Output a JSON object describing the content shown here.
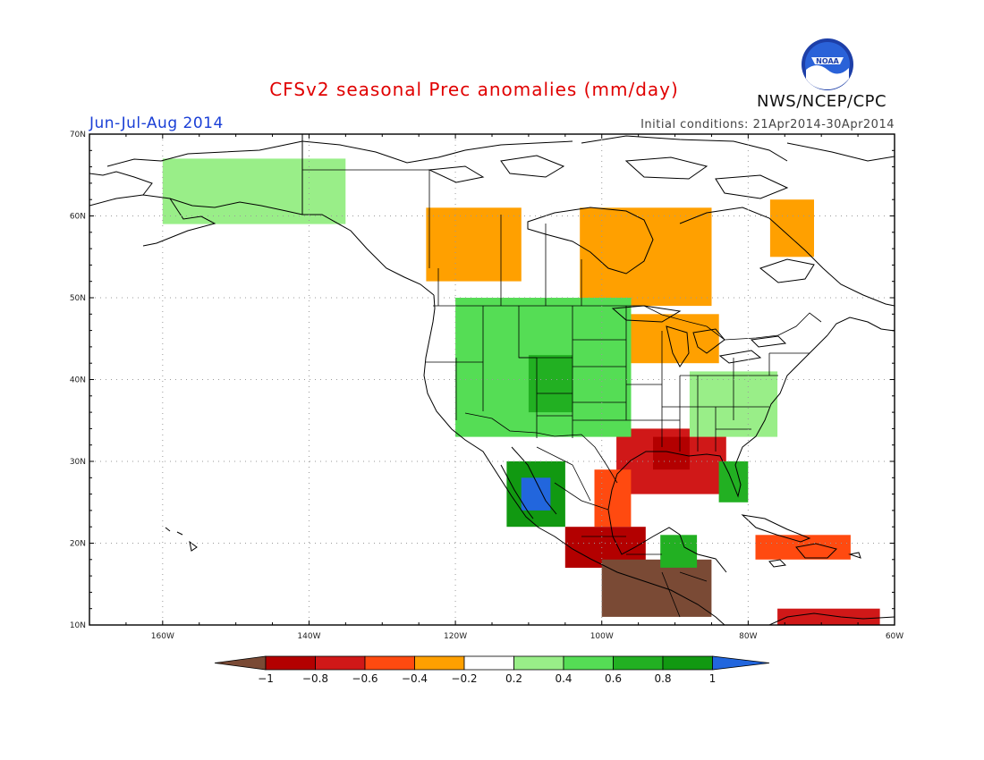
{
  "title": "CFSv2 seasonal Prec anomalies (mm/day)",
  "season": "Jun-Jul-Aug 2014",
  "initial_conditions": "Initial conditions: 21Apr2014-30Apr2014",
  "agency": "NWS/NCEP/CPC",
  "logo_text": "NOAA",
  "colors": {
    "title": "#e00000",
    "season": "#1a3fd6",
    "frame": "#000000",
    "coast": "#000000",
    "grid": "#9a9a9a"
  },
  "map_extent": {
    "lon_min": -170,
    "lon_max": -60,
    "lat_min": 10,
    "lat_max": 70
  },
  "lat_labels": [
    {
      "value": 70,
      "label": "70N"
    },
    {
      "value": 60,
      "label": "60N"
    },
    {
      "value": 50,
      "label": "50N"
    },
    {
      "value": 40,
      "label": "40N"
    },
    {
      "value": 30,
      "label": "30N"
    },
    {
      "value": 20,
      "label": "20N"
    },
    {
      "value": 10,
      "label": "10N"
    }
  ],
  "lon_labels": [
    {
      "value": -160,
      "label": "160W"
    },
    {
      "value": -140,
      "label": "140W"
    },
    {
      "value": -120,
      "label": "120W"
    },
    {
      "value": -100,
      "label": "100W"
    },
    {
      "value": -80,
      "label": "80W"
    },
    {
      "value": -60,
      "label": "60W"
    }
  ],
  "colorbar": {
    "labels": [
      "-1",
      "-0.8",
      "-0.6",
      "-0.4",
      "-0.2",
      "0.2",
      "0.4",
      "0.6",
      "0.8",
      "1"
    ],
    "colors": [
      "#7a4a35",
      "#b30000",
      "#d01818",
      "#ff4a10",
      "#ffa000",
      "#ffffff",
      "#99ee88",
      "#55dd55",
      "#22b022",
      "#119911",
      "#2266dd"
    ]
  },
  "anomaly_regions": [
    {
      "name": "Southeast US / Gulf Coast dry",
      "lon_min": -98,
      "lon_max": -83,
      "lat_min": 26,
      "lat_max": 34,
      "value": -0.7
    },
    {
      "name": "Louisiana core dry",
      "lon_min": -93,
      "lon_max": -88,
      "lat_min": 29,
      "lat_max": 33,
      "value": -0.9
    },
    {
      "name": "Texas coast dry",
      "lon_min": -101,
      "lon_max": -96,
      "lat_min": 22,
      "lat_max": 29,
      "value": -0.6
    },
    {
      "name": "Southern Mexico dry",
      "lon_min": -105,
      "lon_max": -94,
      "lat_min": 17,
      "lat_max": 22,
      "value": -0.9
    },
    {
      "name": "Central America very dry",
      "lon_min": -100,
      "lon_max": -85,
      "lat_min": 11,
      "lat_max": 18,
      "value": -1.1
    },
    {
      "name": "Caribbean dry",
      "lon_min": -79,
      "lon_max": -66,
      "lat_min": 18,
      "lat_max": 21,
      "value": -0.6
    },
    {
      "name": "Northern South America dry",
      "lon_min": -76,
      "lon_max": -62,
      "lat_min": 10,
      "lat_max": 12,
      "value": -0.7
    },
    {
      "name": "Central Canada dry",
      "lon_min": -103,
      "lon_max": -85,
      "lat_min": 49,
      "lat_max": 61,
      "value": -0.4
    },
    {
      "name": "Northwest Canada dry",
      "lon_min": -124,
      "lon_max": -111,
      "lat_min": 52,
      "lat_max": 61,
      "value": -0.4
    },
    {
      "name": "Quebec dry",
      "lon_min": -77,
      "lon_max": -71,
      "lat_min": 55,
      "lat_max": 62,
      "value": -0.3
    },
    {
      "name": "Great Lakes dry",
      "lon_min": -102,
      "lon_max": -84,
      "lat_min": 42,
      "lat_max": 48,
      "value": -0.3
    },
    {
      "name": "Rockies / Plains wet",
      "lon_min": -120,
      "lon_max": -96,
      "lat_min": 33,
      "lat_max": 50,
      "value": 0.5
    },
    {
      "name": "Four Corners core wet",
      "lon_min": -110,
      "lon_max": -104,
      "lat_min": 36,
      "lat_max": 43,
      "value": 0.7
    },
    {
      "name": "Mexican monsoon wet",
      "lon_min": -113,
      "lon_max": -105,
      "lat_min": 22,
      "lat_max": 30,
      "value": 0.8
    },
    {
      "name": "Sierra Madre very wet",
      "lon_min": -111,
      "lon_max": -107,
      "lat_min": 24,
      "lat_max": 28,
      "value": 1.1
    },
    {
      "name": "Florida wet",
      "lon_min": -84,
      "lon_max": -80,
      "lat_min": 25,
      "lat_max": 30,
      "value": 0.6
    },
    {
      "name": "Yucatan wet",
      "lon_min": -92,
      "lon_max": -87,
      "lat_min": 17,
      "lat_max": 21,
      "value": 0.7
    },
    {
      "name": "Alaska wet",
      "lon_min": -160,
      "lon_max": -135,
      "lat_min": 59,
      "lat_max": 67,
      "value": 0.3
    },
    {
      "name": "Mid-Atlantic wet",
      "lon_min": -88,
      "lon_max": -76,
      "lat_min": 33,
      "lat_max": 41,
      "value": 0.3
    }
  ]
}
